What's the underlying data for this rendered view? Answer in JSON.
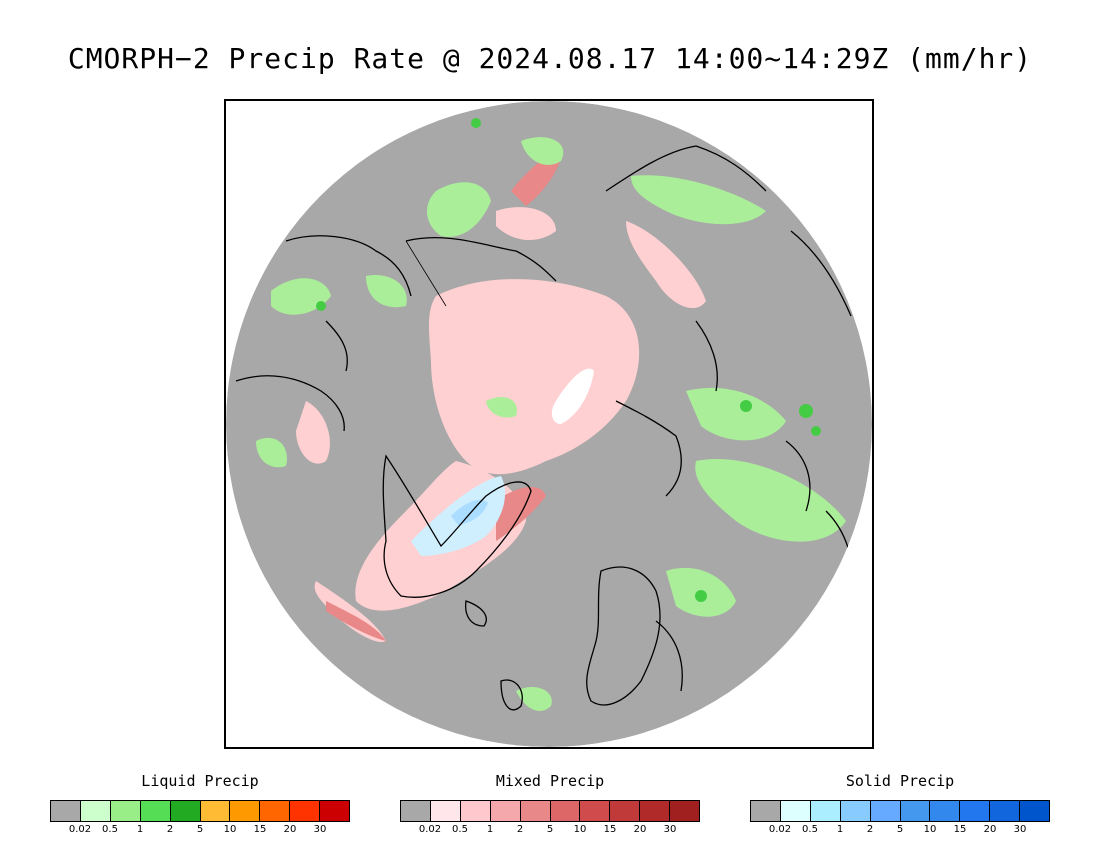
{
  "title": "CMORPH−2 Precip Rate @ 2024.08.17 14:00~14:29Z (mm/hr)",
  "map": {
    "projection": "polar-stereographic-north",
    "background_color": "#a8a8a8",
    "outside_color": "#ffffff",
    "coastline_color": "#000000"
  },
  "legends": [
    {
      "title": "Liquid Precip",
      "colors": [
        "#a8a8a8",
        "#ccffcc",
        "#99ee88",
        "#55dd55",
        "#22aa22",
        "#ffbb33",
        "#ff9900",
        "#ff6600",
        "#ff3300",
        "#cc0000"
      ],
      "ticks": [
        "0.02",
        "0.5",
        "1",
        "2",
        "5",
        "10",
        "15",
        "20",
        "30"
      ]
    },
    {
      "title": "Mixed Precip",
      "colors": [
        "#a8a8a8",
        "#ffe6ea",
        "#ffc8cc",
        "#f4a8ac",
        "#e88888",
        "#dd6666",
        "#d04c4c",
        "#c03a3a",
        "#b02a2a",
        "#a02020"
      ],
      "ticks": [
        "0.02",
        "0.5",
        "1",
        "2",
        "5",
        "10",
        "15",
        "20",
        "30"
      ]
    },
    {
      "title": "Solid Precip",
      "colors": [
        "#a8a8a8",
        "#ddffff",
        "#aaeeff",
        "#88ccff",
        "#66aaff",
        "#4499ee",
        "#3388ee",
        "#2277ee",
        "#1166dd",
        "#0055cc"
      ],
      "ticks": [
        "0.02",
        "0.5",
        "1",
        "2",
        "5",
        "10",
        "15",
        "20",
        "30"
      ]
    }
  ]
}
